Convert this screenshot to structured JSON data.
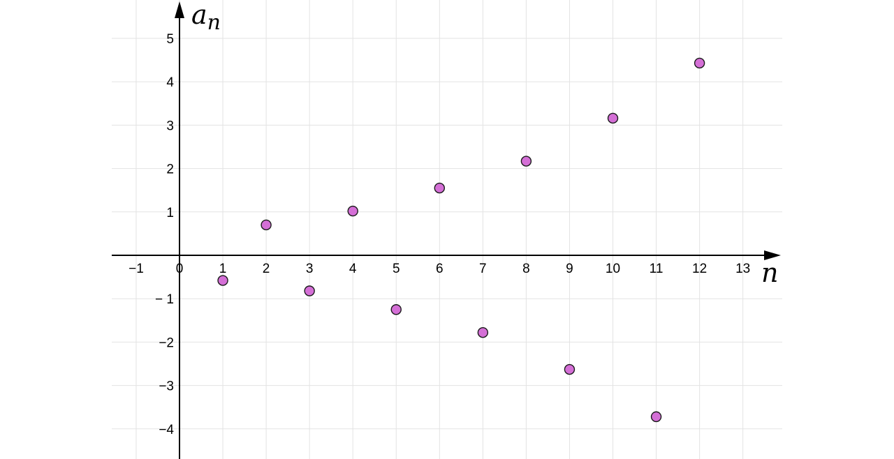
{
  "chart_data": {
    "type": "scatter",
    "title": "",
    "xlabel": "n",
    "ylabel": "a",
    "ylabel_subscript": "n",
    "xlim": [
      -1.55,
      13.8
    ],
    "ylim": [
      -4.7,
      5.75
    ],
    "grid": true,
    "x_ticks": [
      -1,
      0,
      1,
      2,
      3,
      4,
      5,
      6,
      7,
      8,
      9,
      10,
      11,
      12,
      13
    ],
    "x_tick_labels": [
      "−1",
      "0",
      "1",
      "2",
      "3",
      "4",
      "5",
      "6",
      "7",
      "8",
      "9",
      "10",
      "11",
      "12",
      "13"
    ],
    "y_ticks": [
      5,
      4,
      3,
      2,
      1,
      -1,
      -2,
      -3,
      -4
    ],
    "y_tick_labels": [
      "5",
      "4",
      "3",
      "2",
      "1",
      "− 1",
      "−2",
      "−3",
      "−4"
    ],
    "series": [
      {
        "color": "#d46fd6",
        "x": [
          1,
          2,
          3,
          4,
          5,
          6,
          7,
          8,
          9,
          10,
          11,
          12
        ],
        "y": [
          -0.58,
          0.7,
          -0.82,
          1.02,
          -1.25,
          1.55,
          -1.78,
          2.17,
          -2.63,
          3.16,
          -3.72,
          4.43
        ]
      }
    ]
  }
}
